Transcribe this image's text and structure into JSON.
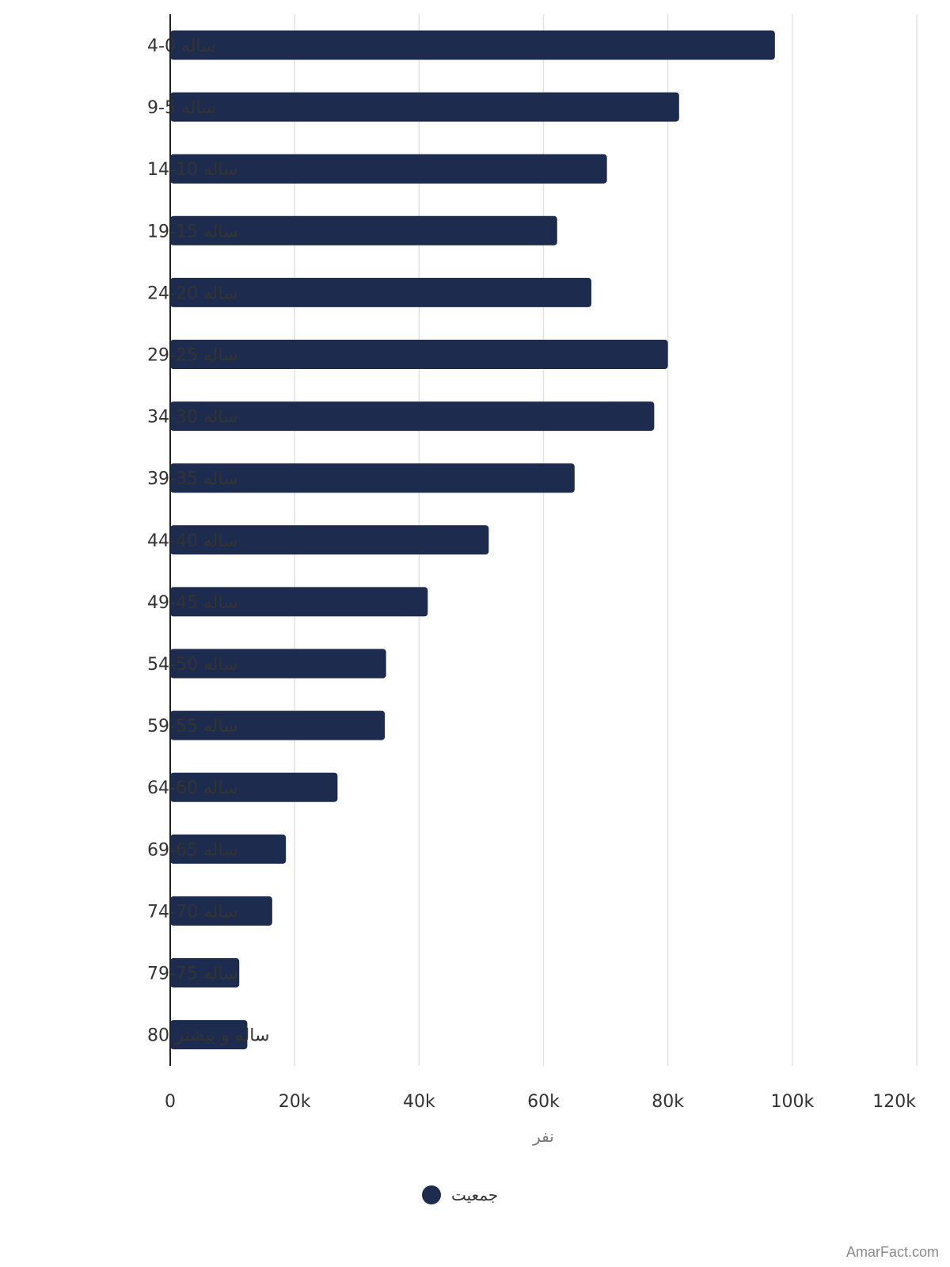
{
  "chart_data": {
    "type": "bar",
    "orientation": "horizontal",
    "categories": [
      "ساله 0-4",
      "ساله 5-9",
      "ساله 10-14",
      "ساله 15-19",
      "ساله 20-24",
      "ساله 25-29",
      "ساله 30-34",
      "ساله 35-39",
      "ساله 40-44",
      "ساله 45-49",
      "ساله 50-54",
      "ساله 55-59",
      "ساله 60-64",
      "ساله 65-69",
      "ساله 70-74",
      "ساله 75-79",
      "ساله و بیشتر 80"
    ],
    "series": [
      {
        "name": "جمعیت",
        "color": "#1c2b4e",
        "values": [
          97200,
          81800,
          70200,
          62200,
          67700,
          80000,
          77800,
          65000,
          51200,
          41400,
          34700,
          34500,
          26900,
          18600,
          16400,
          11100,
          12400
        ]
      }
    ],
    "xlim": [
      0,
      120000
    ],
    "x_ticks": [
      0,
      20000,
      40000,
      60000,
      80000,
      100000,
      120000
    ],
    "x_tick_labels": [
      "0",
      "20k",
      "40k",
      "60k",
      "80k",
      "100k",
      "120k"
    ],
    "xlabel": "نفر",
    "ylabel": "",
    "grid": true,
    "legend_position": "bottom-center"
  },
  "watermark": "AmarFact.com"
}
